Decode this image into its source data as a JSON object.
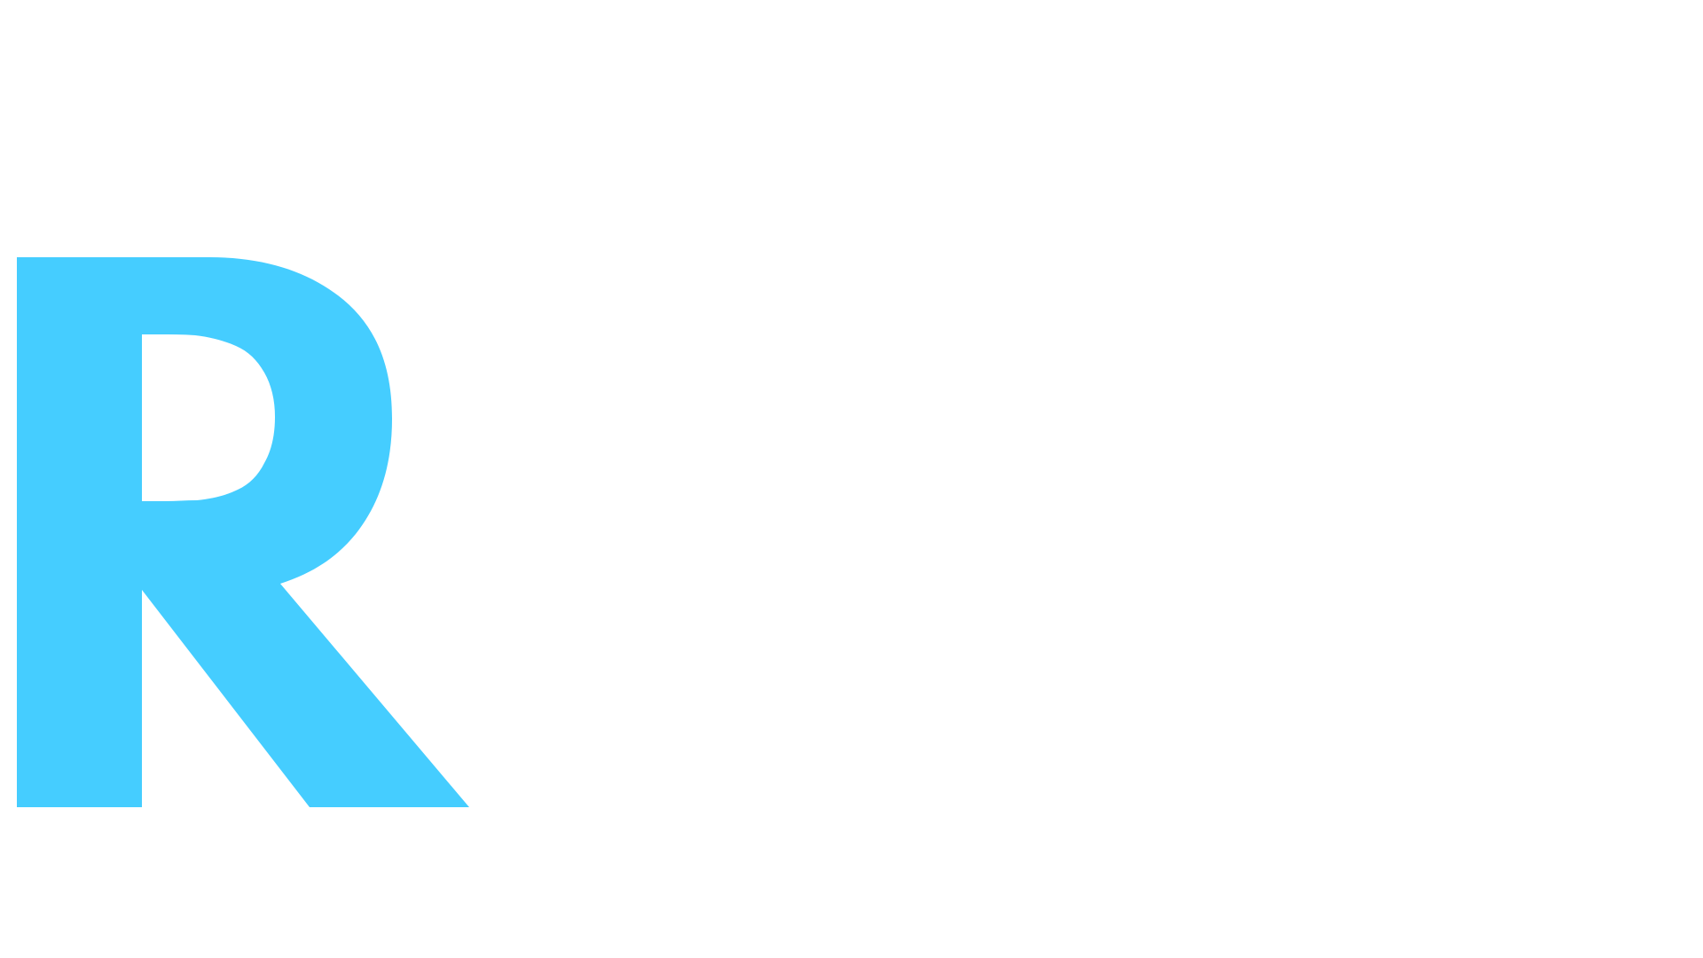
{
  "logo": {
    "text": "R",
    "color": "#45CDFF"
  },
  "colors": {
    "background": "#FFFFFF",
    "accent": "#45CDFF"
  }
}
